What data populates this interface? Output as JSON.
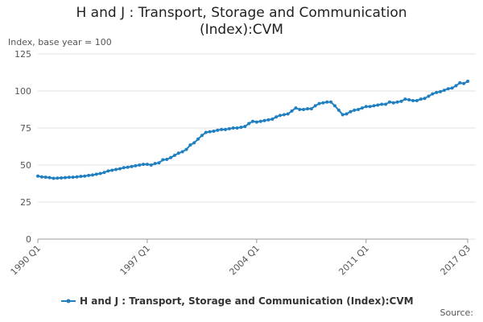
{
  "chart_data": {
    "type": "line",
    "title": "H and J : Transport, Storage and Communication (Index):CVM",
    "y_label": "Index, base year = 100",
    "source": "Source:",
    "categories": [
      "1990 Q1",
      null,
      null,
      null,
      null,
      null,
      null,
      null,
      null,
      null,
      null,
      null,
      null,
      null,
      null,
      null,
      null,
      null,
      null,
      null,
      null,
      null,
      null,
      null,
      null,
      null,
      null,
      null,
      "1997 Q1",
      null,
      null,
      null,
      null,
      null,
      null,
      null,
      null,
      null,
      null,
      null,
      null,
      null,
      null,
      null,
      null,
      null,
      null,
      null,
      null,
      null,
      null,
      null,
      null,
      null,
      null,
      null,
      "2004 Q1",
      null,
      null,
      null,
      null,
      null,
      null,
      null,
      null,
      null,
      null,
      null,
      null,
      null,
      null,
      null,
      null,
      null,
      null,
      null,
      null,
      null,
      null,
      null,
      null,
      null,
      null,
      null,
      "2011 Q1",
      null,
      null,
      null,
      null,
      null,
      null,
      null,
      null,
      null,
      null,
      null,
      null,
      null,
      null,
      null,
      null,
      null,
      null,
      null,
      null,
      null,
      null,
      null,
      null,
      null,
      "2017 Q3"
    ],
    "series": [
      {
        "name": "H and J : Transport, Storage and Communication (Index):CVM",
        "color": "#1f7fc0",
        "values": [
          42.5,
          42,
          41.8,
          41.5,
          41,
          41.2,
          41.3,
          41.5,
          41.7,
          41.8,
          42,
          42.3,
          42.5,
          43,
          43.3,
          43.8,
          44.3,
          45,
          46,
          46.5,
          47,
          47.5,
          48.2,
          48.5,
          49,
          49.5,
          50,
          50.5,
          50.5,
          50,
          51,
          51.5,
          53.5,
          53.8,
          55,
          56.5,
          58,
          59,
          60.5,
          63.5,
          65,
          67.5,
          70,
          72,
          72.5,
          72.8,
          73.5,
          74,
          74,
          74.5,
          75,
          75,
          75.5,
          76,
          78,
          79.5,
          79,
          79.5,
          80,
          80.5,
          81,
          82.5,
          83.5,
          84,
          84.5,
          86.5,
          88.5,
          87.5,
          87.5,
          88,
          88,
          90,
          91.5,
          92,
          92.5,
          92.5,
          90,
          87,
          84,
          84.5,
          86,
          87,
          87.5,
          88.5,
          89.5,
          89.5,
          90,
          90.5,
          91,
          91,
          92.5,
          92,
          92.5,
          93,
          94.5,
          94,
          93.5,
          93.5,
          94.5,
          95,
          96.5,
          98,
          99,
          99.5,
          100.5,
          101.5,
          102,
          103.5,
          105.5,
          105,
          106.5
        ]
      }
    ],
    "ylim": [
      0,
      125
    ],
    "yticks": [
      0,
      25,
      50,
      75,
      100,
      125
    ],
    "grid": true
  }
}
